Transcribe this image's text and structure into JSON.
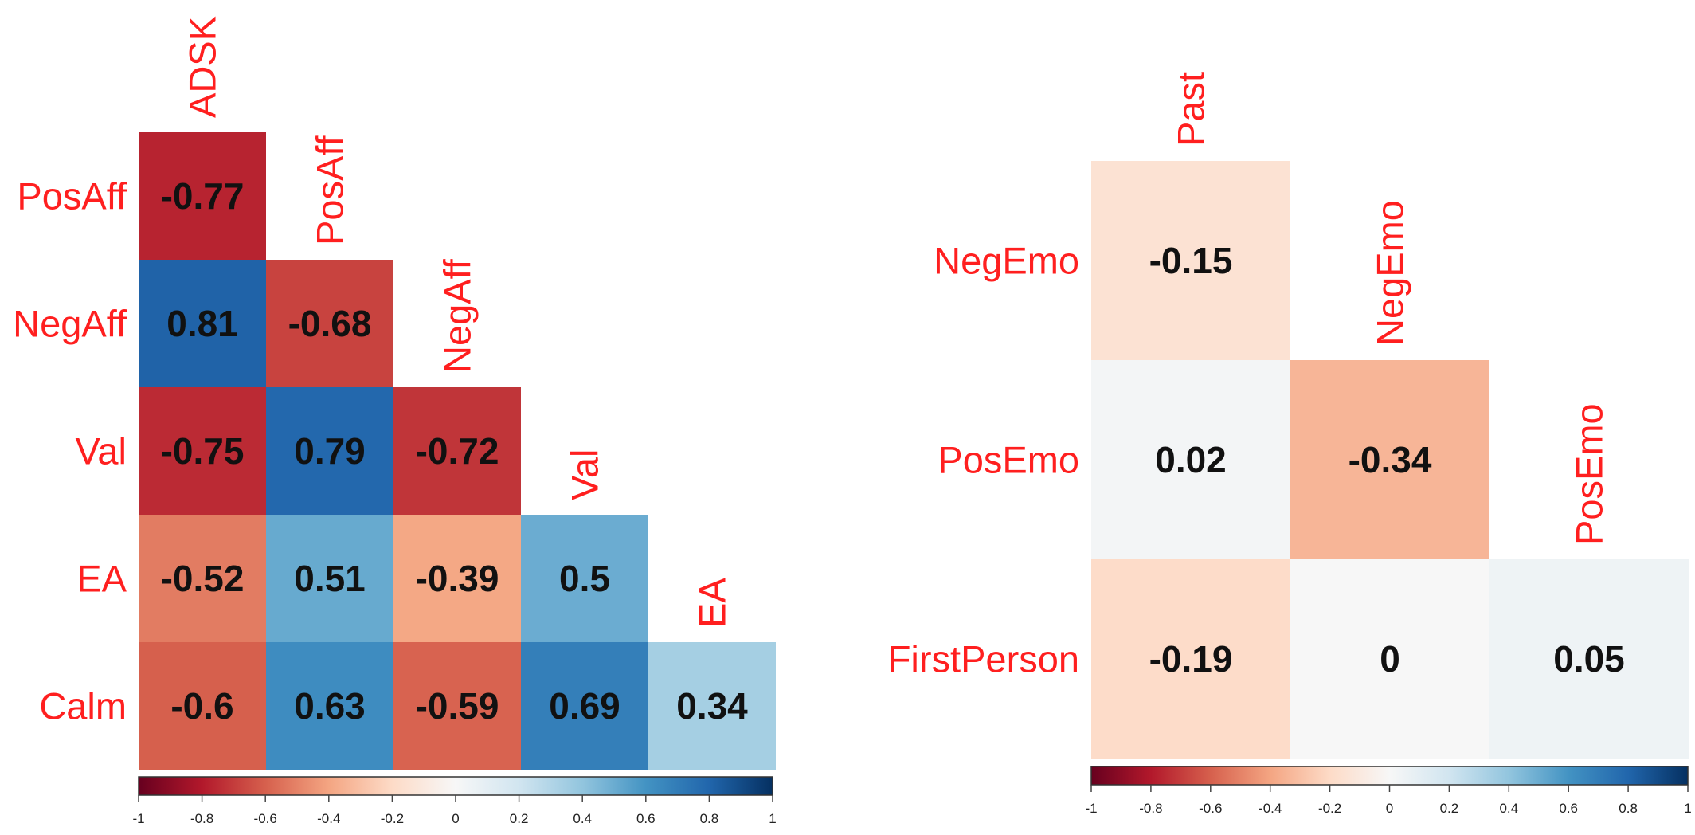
{
  "colors": {
    "label": "#ff1f1f",
    "value_text": "#111111",
    "scale": [
      "#67001f",
      "#b2182b",
      "#d6604d",
      "#f4a582",
      "#fddbc7",
      "#f7f7f7",
      "#d1e5f0",
      "#92c5de",
      "#4393c3",
      "#2166ac",
      "#053061"
    ]
  },
  "chart_data": [
    {
      "type": "heatmap",
      "title": "",
      "variables": [
        "ADSK",
        "PosAff",
        "NegAff",
        "Val",
        "EA",
        "Calm"
      ],
      "row_labels": [
        "PosAff",
        "NegAff",
        "Val",
        "EA",
        "Calm"
      ],
      "col_labels": [
        "ADSK",
        "PosAff",
        "NegAff",
        "Val",
        "EA"
      ],
      "values": [
        [
          -0.77
        ],
        [
          0.81,
          -0.68
        ],
        [
          -0.75,
          0.79,
          -0.72
        ],
        [
          -0.52,
          0.51,
          -0.39,
          0.5
        ],
        [
          -0.6,
          0.63,
          -0.59,
          0.69,
          0.34
        ]
      ],
      "value_labels": [
        [
          "-0.77"
        ],
        [
          "0.81",
          "-0.68"
        ],
        [
          "-0.75",
          "0.79",
          "-0.72"
        ],
        [
          "-0.52",
          "0.51",
          "-0.39",
          "0.5"
        ],
        [
          "-0.6",
          "0.63",
          "-0.59",
          "0.69",
          "0.34"
        ]
      ],
      "colorbar": {
        "range": [
          -1,
          1
        ],
        "ticks": [
          -1,
          -0.8,
          -0.6,
          -0.4,
          -0.2,
          0,
          0.2,
          0.4,
          0.6,
          0.8,
          1
        ],
        "tick_labels": [
          "-1",
          "-0.8",
          "-0.6",
          "-0.4",
          "-0.2",
          "0",
          "0.2",
          "0.4",
          "0.6",
          "0.8",
          "1"
        ]
      }
    },
    {
      "type": "heatmap",
      "title": "",
      "variables": [
        "Past",
        "NegEmo",
        "PosEmo",
        "FirstPerson"
      ],
      "row_labels": [
        "NegEmo",
        "PosEmo",
        "FirstPerson"
      ],
      "col_labels": [
        "Past",
        "NegEmo",
        "PosEmo"
      ],
      "values": [
        [
          -0.15
        ],
        [
          0.02,
          -0.34
        ],
        [
          -0.19,
          0,
          0.05
        ]
      ],
      "value_labels": [
        [
          "-0.15"
        ],
        [
          "0.02",
          "-0.34"
        ],
        [
          "-0.19",
          "0",
          "0.05"
        ]
      ],
      "colorbar": {
        "range": [
          -1,
          1
        ],
        "ticks": [
          -1,
          -0.8,
          -0.6,
          -0.4,
          -0.2,
          0,
          0.2,
          0.4,
          0.6,
          0.8,
          1
        ],
        "tick_labels": [
          "-1",
          "-0.8",
          "-0.6",
          "-0.4",
          "-0.2",
          "0",
          "0.2",
          "0.4",
          "0.6",
          "0.8",
          "1"
        ]
      }
    }
  ]
}
